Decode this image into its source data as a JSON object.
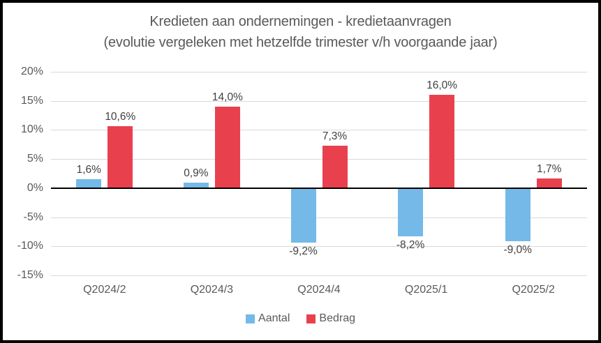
{
  "title": {
    "line1": "Kredieten aan ondernemingen - kredietaanvragen",
    "line2": "(evolutie vergeleken met hetzelfde trimester v/h voorgaande jaar)"
  },
  "colors": {
    "aantal": "#74B9E8",
    "bedrag": "#E8414D",
    "gridline": "#d9d9d9",
    "axis_text": "#595959",
    "data_label_text": "#404040",
    "zero_axis": "#000000",
    "frame_border": "#000000"
  },
  "chart_data": {
    "type": "bar",
    "title": "Kredieten aan ondernemingen - kredietaanvragen (evolutie vergeleken met hetzelfde trimester v/h voorgaande jaar)",
    "categories": [
      "Q2024/2",
      "Q2024/3",
      "Q2024/4",
      "Q2025/1",
      "Q2025/2"
    ],
    "series": [
      {
        "name": "Aantal",
        "color": "#74B9E8",
        "values": [
          1.6,
          0.9,
          -9.2,
          -8.2,
          -9.0
        ],
        "labels": [
          "1,6%",
          "0,9%",
          "-9,2%",
          "-8,2%",
          "-9,0%"
        ]
      },
      {
        "name": "Bedrag",
        "color": "#E8414D",
        "values": [
          10.6,
          14.0,
          7.3,
          16.0,
          1.7
        ],
        "labels": [
          "10,6%",
          "14,0%",
          "7,3%",
          "16,0%",
          "1,7%"
        ]
      }
    ],
    "xlabel": "",
    "ylabel": "",
    "ylim": [
      -15,
      20
    ],
    "ytick_step": 5,
    "yticks": [
      "20%",
      "15%",
      "10%",
      "5%",
      "0%",
      "-5%",
      "-10%",
      "-15%"
    ],
    "grid": true,
    "legend_position": "bottom"
  }
}
